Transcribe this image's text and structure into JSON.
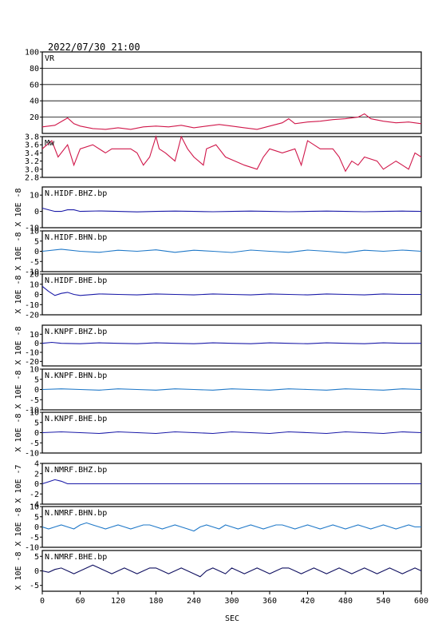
{
  "chart_data": {
    "type": "line",
    "title": "2022/07/30 21:00",
    "xlabel": "SEC",
    "xlim": [
      0,
      600
    ],
    "xticks": [
      "0",
      "60",
      "120",
      "180",
      "240",
      "300",
      "360",
      "420",
      "480",
      "540",
      "600"
    ],
    "panels": [
      {
        "label": "VR",
        "ylabel": "",
        "ylim": [
          0,
          100
        ],
        "yticks": [
          {
            "v": 100,
            "t": "100"
          },
          {
            "v": 80,
            "t": "80"
          },
          {
            "v": 60,
            "t": "60"
          },
          {
            "v": 40,
            "t": "40"
          },
          {
            "v": 20,
            "t": "20"
          }
        ],
        "grid": true,
        "color": "#d0174a",
        "x": [
          0,
          20,
          40,
          50,
          60,
          80,
          100,
          120,
          140,
          160,
          180,
          200,
          220,
          240,
          260,
          280,
          300,
          320,
          340,
          360,
          380,
          390,
          400,
          420,
          440,
          460,
          480,
          500,
          510,
          520,
          540,
          560,
          580,
          600
        ],
        "values": [
          8,
          10,
          19,
          12,
          9,
          6,
          5,
          7,
          5,
          8,
          9,
          8,
          10,
          7,
          9,
          11,
          9,
          7,
          5,
          9,
          13,
          18,
          12,
          14,
          15,
          17,
          18,
          20,
          24,
          18,
          15,
          13,
          14,
          12
        ]
      },
      {
        "label": "Mw",
        "ylabel": "",
        "ylim": [
          2.8,
          3.8
        ],
        "yticks": [
          {
            "v": 3.8,
            "t": "3.8"
          },
          {
            "v": 3.6,
            "t": "3.6"
          },
          {
            "v": 3.4,
            "t": "3.4"
          },
          {
            "v": 3.2,
            "t": "3.2"
          },
          {
            "v": 3.0,
            "t": "3.0"
          },
          {
            "v": 2.8,
            "t": "2.8"
          }
        ],
        "grid": false,
        "color": "#d0174a",
        "x": [
          0,
          15,
          25,
          40,
          50,
          60,
          80,
          100,
          110,
          120,
          140,
          150,
          160,
          170,
          180,
          185,
          195,
          210,
          220,
          230,
          240,
          255,
          260,
          275,
          290,
          305,
          320,
          340,
          350,
          360,
          380,
          400,
          410,
          420,
          430,
          440,
          460,
          470,
          480,
          490,
          500,
          510,
          530,
          540,
          550,
          560,
          570,
          580,
          590,
          600
        ],
        "values": [
          3.5,
          3.7,
          3.3,
          3.6,
          3.1,
          3.5,
          3.6,
          3.4,
          3.5,
          3.5,
          3.5,
          3.4,
          3.1,
          3.3,
          3.8,
          3.5,
          3.4,
          3.2,
          3.8,
          3.5,
          3.3,
          3.1,
          3.5,
          3.6,
          3.3,
          3.2,
          3.1,
          3.0,
          3.3,
          3.5,
          3.4,
          3.5,
          3.1,
          3.7,
          3.6,
          3.5,
          3.5,
          3.3,
          2.95,
          3.2,
          3.1,
          3.3,
          3.2,
          3.0,
          3.1,
          3.2,
          3.1,
          3.0,
          3.4,
          3.3
        ]
      },
      {
        "label": "N.HIDF.BHZ.bp",
        "ylabel": "X 10E -8",
        "ylim": [
          -10,
          15
        ],
        "yticks": [
          {
            "v": 10,
            "t": "10"
          },
          {
            "v": 0,
            "t": "0"
          },
          {
            "v": -10,
            "t": "-10"
          }
        ],
        "grid": false,
        "color": "#1a1aa8",
        "x": [
          0,
          10,
          20,
          30,
          40,
          50,
          60,
          90,
          120,
          150,
          180,
          210,
          240,
          270,
          300,
          330,
          360,
          390,
          420,
          450,
          480,
          510,
          540,
          570,
          600
        ],
        "values": [
          2,
          1,
          0,
          0,
          1,
          1,
          0,
          0.3,
          0,
          -0.3,
          0,
          0.2,
          0,
          -0.2,
          0,
          0.2,
          0,
          -0.2,
          0,
          0.2,
          0,
          -0.2,
          0,
          0.2,
          0
        ]
      },
      {
        "label": "N.HIDF.BHN.bp",
        "ylabel": "X 10E -8",
        "ylim": [
          -10,
          10
        ],
        "yticks": [
          {
            "v": 10,
            "t": "10"
          },
          {
            "v": 5,
            "t": "5"
          },
          {
            "v": 0,
            "t": "0"
          },
          {
            "v": -5,
            "t": "-5"
          },
          {
            "v": -10,
            "t": "-10"
          }
        ],
        "grid": false,
        "color": "#1f78c8",
        "x": [
          0,
          30,
          60,
          90,
          120,
          150,
          180,
          210,
          240,
          270,
          300,
          330,
          360,
          390,
          420,
          450,
          480,
          510,
          540,
          570,
          600
        ],
        "values": [
          0,
          1,
          0,
          -0.5,
          0.5,
          0,
          0.7,
          -0.5,
          0.5,
          0,
          -0.6,
          0.6,
          0,
          -0.5,
          0.6,
          0,
          -0.7,
          0.5,
          0,
          0.6,
          0
        ]
      },
      {
        "label": "N.HIDF.BHE.bp",
        "ylabel": "X 10E -8",
        "ylim": [
          -20,
          20
        ],
        "yticks": [
          {
            "v": 20,
            "t": "20"
          },
          {
            "v": 10,
            "t": "10"
          },
          {
            "v": 0,
            "t": "0"
          },
          {
            "v": -10,
            "t": "-10"
          },
          {
            "v": -20,
            "t": "-20"
          }
        ],
        "grid": false,
        "color": "#1a1aa8",
        "x": [
          0,
          10,
          20,
          30,
          40,
          50,
          60,
          90,
          120,
          150,
          180,
          210,
          240,
          270,
          300,
          330,
          360,
          390,
          420,
          450,
          480,
          510,
          540,
          570,
          600
        ],
        "values": [
          8,
          3,
          -1,
          1,
          2,
          0,
          -1,
          0.5,
          0,
          -0.5,
          0.5,
          0,
          -0.5,
          0.5,
          0,
          -0.5,
          0.5,
          0,
          -0.5,
          0.5,
          0,
          -0.5,
          0.5,
          0,
          0
        ]
      },
      {
        "label": "N.KNPF.BHZ.bp",
        "ylabel": "X 10E -8",
        "ylim": [
          -25,
          20
        ],
        "yticks": [
          {
            "v": 10,
            "t": "10"
          },
          {
            "v": 0,
            "t": "0"
          },
          {
            "v": -10,
            "t": "-10"
          },
          {
            "v": -20,
            "t": "-20"
          }
        ],
        "grid": false,
        "color": "#1a1aa8",
        "x": [
          0,
          15,
          30,
          60,
          90,
          120,
          150,
          180,
          210,
          240,
          270,
          300,
          330,
          360,
          390,
          420,
          450,
          480,
          510,
          540,
          570,
          600
        ],
        "values": [
          0,
          1,
          0,
          -0.5,
          0.5,
          0,
          -0.5,
          0.5,
          0,
          -0.5,
          0.5,
          0,
          -0.5,
          0.5,
          0,
          -0.5,
          0.5,
          0,
          -0.5,
          0.5,
          0,
          0
        ]
      },
      {
        "label": "N.KNPF.BHN.bp",
        "ylabel": "X 10E -8",
        "ylim": [
          -10,
          10
        ],
        "yticks": [
          {
            "v": 10,
            "t": "10"
          },
          {
            "v": 5,
            "t": "5"
          },
          {
            "v": 0,
            "t": "0"
          },
          {
            "v": -5,
            "t": "-5"
          },
          {
            "v": -10,
            "t": "-10"
          }
        ],
        "grid": false,
        "color": "#1f78c8",
        "x": [
          0,
          30,
          60,
          90,
          120,
          150,
          180,
          210,
          240,
          270,
          300,
          330,
          360,
          390,
          420,
          450,
          480,
          510,
          540,
          570,
          600
        ],
        "values": [
          0,
          0.3,
          0,
          -0.3,
          0.3,
          0,
          -0.3,
          0.3,
          0,
          -0.3,
          0.3,
          0,
          -0.3,
          0.3,
          0,
          -0.3,
          0.3,
          0,
          -0.3,
          0.3,
          0
        ]
      },
      {
        "label": "N.KNPF.BHE.bp",
        "ylabel": "X 10E -8",
        "ylim": [
          -10,
          10
        ],
        "yticks": [
          {
            "v": 10,
            "t": "10"
          },
          {
            "v": 5,
            "t": "5"
          },
          {
            "v": 0,
            "t": "0"
          },
          {
            "v": -5,
            "t": "-5"
          },
          {
            "v": -10,
            "t": "-10"
          }
        ],
        "grid": false,
        "color": "#1a1aa8",
        "x": [
          0,
          30,
          60,
          90,
          120,
          150,
          180,
          210,
          240,
          270,
          300,
          330,
          360,
          390,
          420,
          450,
          480,
          510,
          540,
          570,
          600
        ],
        "values": [
          0,
          0.4,
          0,
          -0.4,
          0.4,
          0,
          -0.4,
          0.4,
          0,
          -0.4,
          0.4,
          0,
          -0.4,
          0.4,
          0,
          -0.4,
          0.4,
          0,
          -0.4,
          0.4,
          0
        ]
      },
      {
        "label": "N.NMRF.BHZ.bp",
        "ylabel": "X 10E -7",
        "ylim": [
          -4,
          4
        ],
        "yticks": [
          {
            "v": 4,
            "t": "4"
          },
          {
            "v": 2,
            "t": "2"
          },
          {
            "v": 0,
            "t": "0"
          },
          {
            "v": -2,
            "t": "-2"
          },
          {
            "v": -4,
            "t": "-4"
          }
        ],
        "grid": false,
        "color": "#1a1aa8",
        "x": [
          0,
          10,
          20,
          30,
          40,
          50,
          60,
          90,
          120,
          180,
          240,
          300,
          360,
          420,
          480,
          540,
          600
        ],
        "values": [
          0,
          0.4,
          0.8,
          0.5,
          0,
          0,
          0,
          0,
          0,
          0,
          0,
          0,
          0,
          0,
          0,
          0,
          0
        ]
      },
      {
        "label": "N.NMRF.BHN.bp",
        "ylabel": "X 10E -8",
        "ylim": [
          -10,
          10
        ],
        "yticks": [
          {
            "v": 10,
            "t": "10"
          },
          {
            "v": 5,
            "t": "5"
          },
          {
            "v": 0,
            "t": "0"
          },
          {
            "v": -5,
            "t": "-5"
          },
          {
            "v": -10,
            "t": "-10"
          }
        ],
        "grid": false,
        "color": "#1f78c8",
        "x": [
          0,
          10,
          20,
          30,
          40,
          50,
          60,
          70,
          80,
          90,
          100,
          110,
          120,
          130,
          140,
          150,
          160,
          170,
          180,
          190,
          200,
          210,
          220,
          230,
          240,
          250,
          260,
          270,
          280,
          290,
          300,
          310,
          320,
          330,
          340,
          350,
          360,
          370,
          380,
          390,
          400,
          410,
          420,
          430,
          440,
          450,
          460,
          470,
          480,
          490,
          500,
          510,
          520,
          530,
          540,
          550,
          560,
          570,
          580,
          590,
          600
        ],
        "values": [
          0,
          -1,
          0,
          1,
          0,
          -1,
          1,
          2,
          1,
          0,
          -1,
          0,
          1,
          0,
          -1,
          0,
          1,
          1,
          0,
          -1,
          0,
          1,
          0,
          -1,
          -2,
          0,
          1,
          0,
          -1,
          1,
          0,
          -1,
          0,
          1,
          0,
          -1,
          0,
          1,
          1,
          0,
          -1,
          0,
          1,
          0,
          -1,
          0,
          1,
          0,
          -1,
          0,
          1,
          0,
          -1,
          0,
          1,
          0,
          -1,
          0,
          1,
          0,
          0
        ]
      },
      {
        "label": "N.NMRF.BHE.bp",
        "ylabel": "X 10E -8",
        "ylim": [
          -7,
          7
        ],
        "yticks": [
          {
            "v": 5,
            "t": "5"
          },
          {
            "v": 0,
            "t": "0"
          },
          {
            "v": -5,
            "t": "-5"
          }
        ],
        "grid": false,
        "color": "#101060",
        "x": [
          0,
          10,
          20,
          30,
          40,
          50,
          60,
          70,
          80,
          90,
          100,
          110,
          120,
          130,
          140,
          150,
          160,
          170,
          180,
          190,
          200,
          210,
          220,
          230,
          240,
          250,
          260,
          270,
          280,
          290,
          300,
          310,
          320,
          330,
          340,
          350,
          360,
          370,
          380,
          390,
          400,
          410,
          420,
          430,
          440,
          450,
          460,
          470,
          480,
          490,
          500,
          510,
          520,
          530,
          540,
          550,
          560,
          570,
          580,
          590,
          600
        ],
        "values": [
          0,
          -0.5,
          0.5,
          1,
          0,
          -1,
          0,
          1,
          2,
          1,
          0,
          -1,
          0,
          1,
          0,
          -1,
          0,
          1,
          1,
          0,
          -1,
          0,
          1,
          0,
          -1,
          -2,
          0,
          1,
          0,
          -1,
          1,
          0,
          -1,
          0,
          1,
          0,
          -1,
          0,
          1,
          1,
          0,
          -1,
          0,
          1,
          0,
          -1,
          0,
          1,
          0,
          -1,
          0,
          1,
          0,
          -1,
          0,
          1,
          0,
          -1,
          0,
          1,
          0
        ]
      }
    ]
  }
}
